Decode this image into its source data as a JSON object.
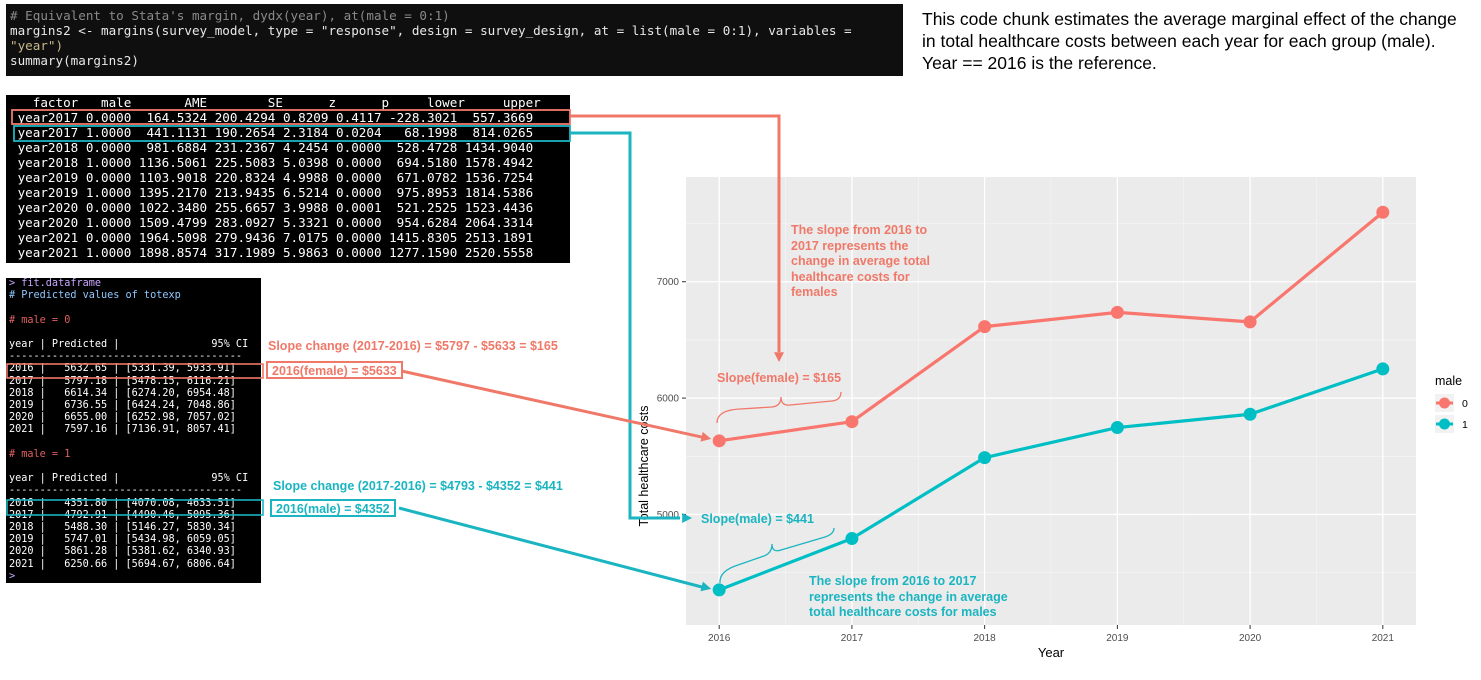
{
  "description": "This code chunk estimates the average marginal effect of the change in total healthcare costs between each year for each group (male). Year == 2016 is the reference.",
  "code_lines": {
    "comment": "# Equivalent to Stata's margin, dydx(year), at(male = 0:1)",
    "line1": "margins2 <- margins(survey_model, type = \"response\", design = survey_design, at = list(male = 0:1), variables =",
    "line2": "\"year\")",
    "line3": "summary(margins2)"
  },
  "margins_table": {
    "header": "   factor   male       AME        SE      z      p     lower     upper",
    "rows": [
      " year2017 0.0000  164.5324 200.4294 0.8209 0.4117 -228.3021  557.3669",
      " year2017 1.0000  441.1131 190.2654 2.3184 0.0204   68.1998  814.0265",
      " year2018 0.0000  981.6884 231.2367 4.2454 0.0000  528.4728 1434.9040",
      " year2018 1.0000 1136.5061 225.5083 5.0398 0.0000  694.5180 1578.4942",
      " year2019 0.0000 1103.9018 220.8324 4.9988 0.0000  671.0782 1536.7254",
      " year2019 1.0000 1395.2170 213.9435 6.5214 0.0000  975.8953 1814.5386",
      " year2020 0.0000 1022.3480 255.6657 3.9988 0.0001  521.2525 1523.4436",
      " year2020 1.0000 1509.4799 283.0927 5.3321 0.0000  954.6284 2064.3314",
      " year2021 0.0000 1964.5098 279.9436 7.0175 0.0000 1415.8305 2513.1891",
      " year2021 1.0000 1898.8574 317.1989 5.9863 0.0000 1277.1590 2520.5558"
    ]
  },
  "fit_dataframe": {
    "prompt": "> fit.dataframe",
    "subtitle": "# Predicted values of totexp",
    "group0_label": "# male = 0",
    "group1_label": "# male = 1",
    "header": "year | Predicted |               95% CI",
    "divider": "--------------------------------------",
    "group0_rows": [
      "2016 |   5632.65 | [5331.39, 5933.91]",
      "2017 |   5797.18 | [5478.15, 6116.21]",
      "2018 |   6614.34 | [6274.20, 6954.48]",
      "2019 |   6736.55 | [6424.24, 7048.86]",
      "2020 |   6655.00 | [6252.98, 7057.02]",
      "2021 |   7597.16 | [7136.91, 8057.41]"
    ],
    "group1_rows": [
      "2016 |   4351.80 | [4070.08, 4633.51]",
      "2017 |   4792.91 | [4490.46, 5095.36]",
      "2018 |   5488.30 | [5146.27, 5830.34]",
      "2019 |   5747.01 | [5434.98, 6059.05]",
      "2020 |   5861.28 | [5381.62, 6340.93]",
      "2021 |   6250.66 | [5694.67, 6806.64]"
    ],
    "trailing_prompt": ">"
  },
  "annotations": {
    "slope_change_female": "Slope change (2017-2016) = $5797 - $5633 = $165",
    "box_female": "2016(female) = $5633",
    "slope_change_male": "Slope change (2017-2016) = $4793 - $4352 = $441",
    "box_male": "2016(male) = $4352",
    "note_female": "The slope from 2016 to 2017 represents the change in average total healthcare costs for females",
    "slope_female": "Slope(female) = $165",
    "slope_male": "Slope(male) = $441",
    "note_male": "The slope from 2016 to 2017 represents the change in average total healthcare costs for males"
  },
  "colors": {
    "female": "#f8766d",
    "male": "#00bfc4",
    "panel_bg": "#ebebeb",
    "ann_red": "#f07868",
    "ann_teal": "#1ab5c1"
  },
  "chart_data": {
    "type": "line",
    "x": [
      2016,
      2017,
      2018,
      2019,
      2020,
      2021
    ],
    "series": [
      {
        "name": "0",
        "values": [
          5632.65,
          5797.18,
          6614.34,
          6736.55,
          6655.0,
          7597.16
        ]
      },
      {
        "name": "1",
        "values": [
          4351.8,
          4792.91,
          5488.3,
          5747.01,
          5861.28,
          6250.66
        ]
      }
    ],
    "xlabel": "Year",
    "ylabel": "Total healthcare costs",
    "yticks": [
      "5000",
      "6000",
      "7000"
    ],
    "xticks": [
      "2016",
      "2017",
      "2018",
      "2019",
      "2020",
      "2021"
    ],
    "legend_title": "male",
    "legend_labels": [
      "0",
      "1"
    ],
    "legend_position": "right",
    "ylim": [
      4050,
      7900
    ],
    "grid": true
  }
}
